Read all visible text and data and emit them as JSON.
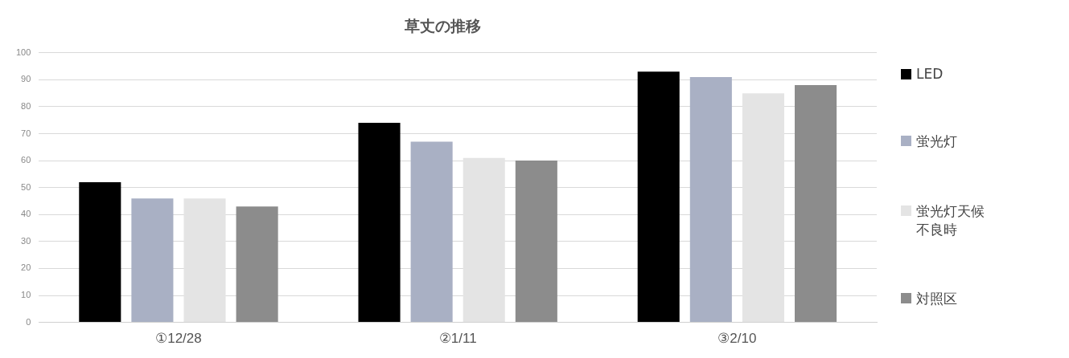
{
  "chart_data": {
    "type": "bar",
    "title": "草丈の推移",
    "categories": [
      "①12/28",
      "②1/11",
      "③2/10"
    ],
    "series": [
      {
        "name": "LED",
        "color": "#000000",
        "values": [
          52,
          74,
          93
        ]
      },
      {
        "name": "蛍光灯",
        "color": "#a9b0c4",
        "values": [
          46,
          67,
          91
        ]
      },
      {
        "name": "蛍光灯天候不良時",
        "color": "#e4e4e4",
        "values": [
          46,
          61,
          85
        ]
      },
      {
        "name": "対照区",
        "color": "#8c8c8c",
        "values": [
          43,
          60,
          88
        ]
      }
    ],
    "ylim": [
      0,
      100
    ],
    "yticks": [
      0,
      10,
      20,
      30,
      40,
      50,
      60,
      70,
      80,
      90,
      100
    ],
    "grid": "y",
    "legend": "right"
  }
}
